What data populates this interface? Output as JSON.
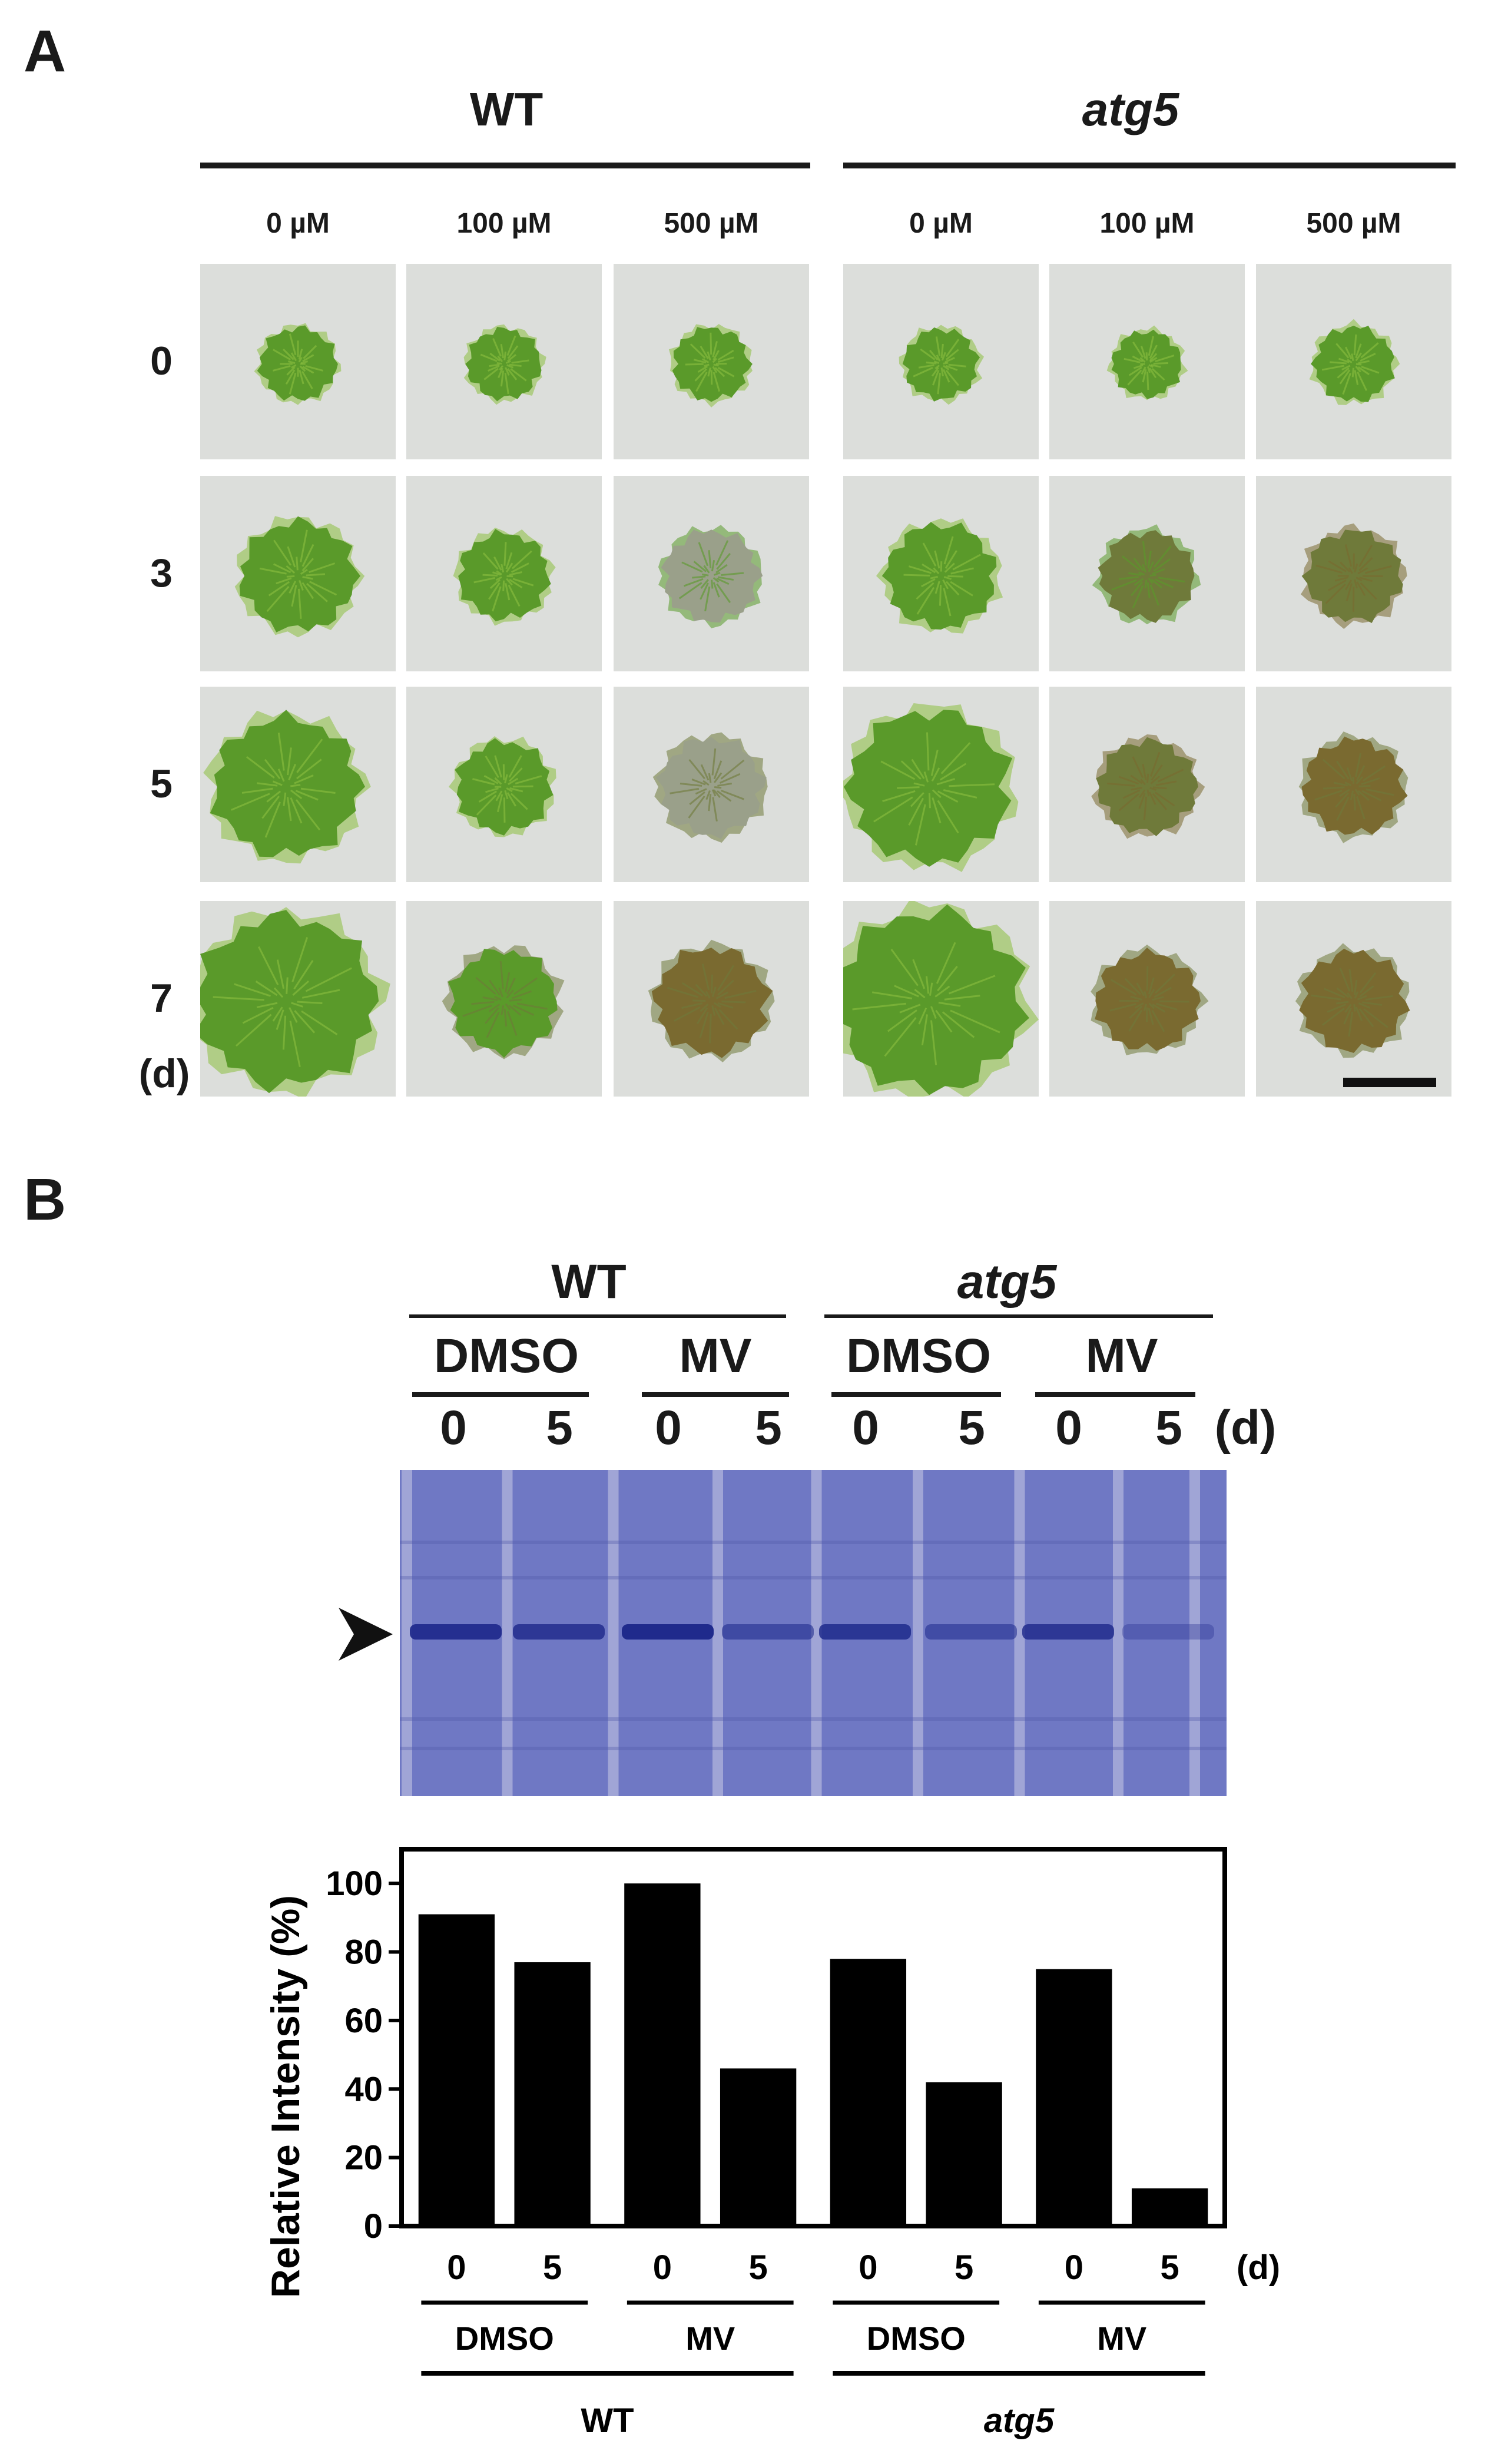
{
  "panel_a": {
    "letter": "A",
    "groups": [
      {
        "label": "WT",
        "italic": false
      },
      {
        "label": "atg5",
        "italic": true
      }
    ],
    "concentrations": [
      "0 µM",
      "100 µM",
      "500 µM",
      "0 µM",
      "100 µM",
      "500 µM"
    ],
    "days": [
      "0",
      "3",
      "5",
      "7"
    ],
    "day_unit": "(d)",
    "tile_background": "#dcdedb",
    "colony_colors": {
      "healthy": "#5a9a2a",
      "light": "#8cc040",
      "stressed": "#6f7a3a",
      "bleached": "#9aa08a",
      "brown": "#7a6a30"
    }
  },
  "panel_b": {
    "letter": "B",
    "top_groups": [
      {
        "label": "WT",
        "italic": false
      },
      {
        "label": "atg5",
        "italic": true
      }
    ],
    "treatments": [
      "DMSO",
      "MV",
      "DMSO",
      "MV"
    ],
    "lanes": [
      "0",
      "5",
      "0",
      "5",
      "0",
      "5",
      "0",
      "5"
    ],
    "day_unit": "(d)",
    "gel_color": "#6f78c4"
  },
  "chart_data": {
    "type": "bar",
    "ylabel": "Relative Intensity (%)",
    "ylim": [
      0,
      110
    ],
    "yticks": [
      "0",
      "20",
      "40",
      "60",
      "80",
      "100"
    ],
    "categories": [
      "0",
      "5",
      "0",
      "5",
      "0",
      "5",
      "0",
      "5"
    ],
    "values": [
      91,
      77,
      100,
      46,
      78,
      42,
      75,
      11
    ],
    "category_unit": "(d)",
    "treatment_labels": [
      "DMSO",
      "MV",
      "DMSO",
      "MV"
    ],
    "genotype_labels": [
      {
        "label": "WT",
        "italic": false
      },
      {
        "label": "atg5",
        "italic": true
      }
    ],
    "bar_color": "#000000"
  }
}
